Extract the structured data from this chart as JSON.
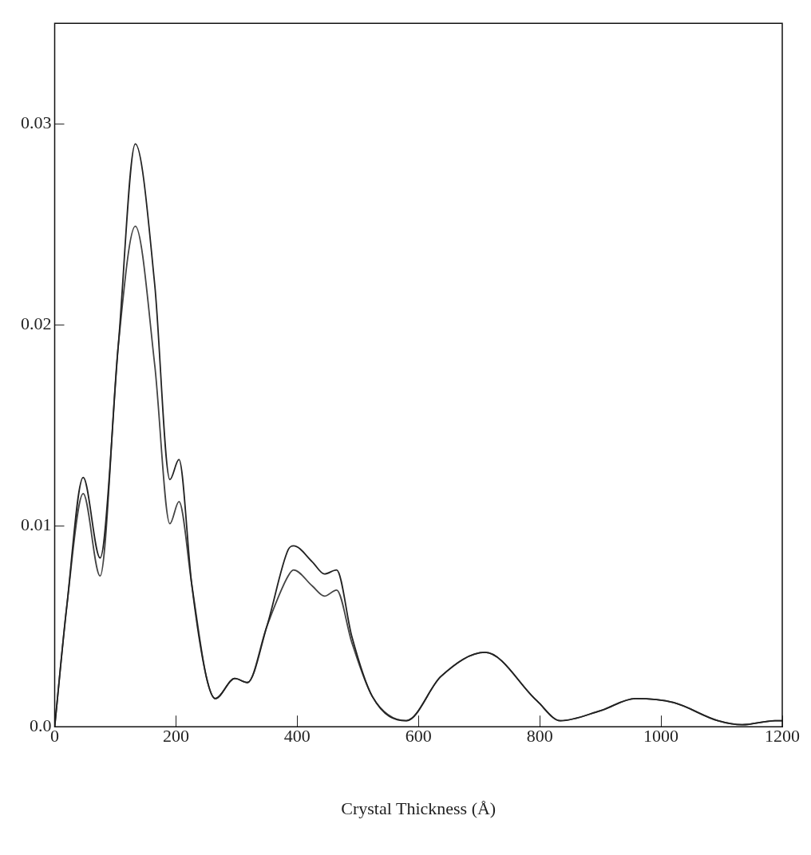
{
  "chart_data": {
    "type": "line",
    "xlabel": "Crystal Thickness (Å)",
    "x": [
      0,
      20,
      47,
      75,
      105,
      133,
      165,
      190,
      205,
      226,
      250,
      265,
      297,
      318,
      350,
      385,
      394,
      425,
      445,
      465,
      490,
      524,
      580,
      637,
      710,
      795,
      834,
      900,
      958,
      1021,
      1094,
      1134,
      1188,
      1200
    ],
    "series": [
      {
        "color": "#222222",
        "values": [
          0,
          0.006,
          0.0124,
          0.0084,
          0.019,
          0.029,
          0.022,
          0.0123,
          0.0133,
          0.0071,
          0.0025,
          0.0014,
          0.0024,
          0.0022,
          0.005,
          0.0088,
          0.009,
          0.0082,
          0.0076,
          0.0078,
          0.0045,
          0.0015,
          0.0003,
          0.0025,
          0.0037,
          0.0013,
          0.0003,
          0.0008,
          0.0014,
          0.0012,
          0.0003,
          0.0001,
          0.0003,
          0.0003
        ]
      },
      {
        "color": "#444444",
        "values": [
          0,
          0.006,
          0.0116,
          0.0075,
          0.019,
          0.0249,
          0.018,
          0.0101,
          0.0112,
          0.0071,
          0.0025,
          0.0014,
          0.0024,
          0.0022,
          0.005,
          0.0075,
          0.0078,
          0.007,
          0.0065,
          0.0068,
          0.0042,
          0.0015,
          0.0003,
          0.0025,
          0.0037,
          0.0013,
          0.0003,
          0.0008,
          0.0014,
          0.0012,
          0.0003,
          0.0001,
          0.0003,
          0.0003
        ]
      }
    ],
    "xlim": [
      0,
      1200
    ],
    "xticks": [
      0,
      200,
      400,
      600,
      800,
      1000,
      1200
    ],
    "ylim": [
      0,
      0.035
    ],
    "yticks": [
      {
        "value": 0,
        "label": "0.0"
      },
      0.01,
      0.02,
      0.03
    ],
    "grid": false,
    "legend": false,
    "marker": "none",
    "line_style": "solid"
  }
}
